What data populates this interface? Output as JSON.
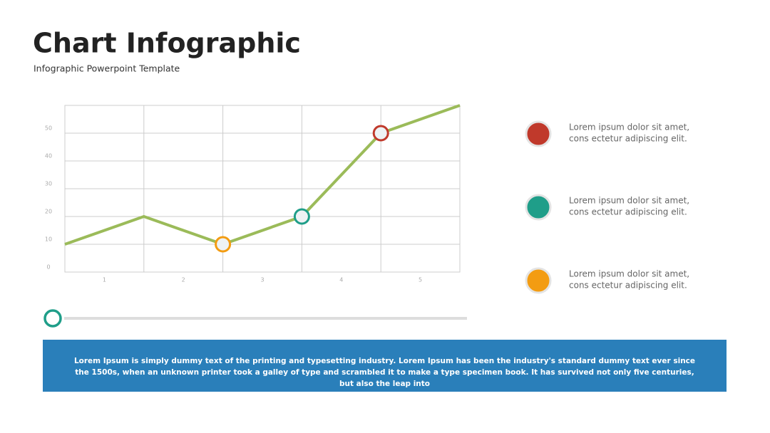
{
  "header": {
    "title": "Chart Infographic",
    "subtitle": "Infographic Powerpoint Template"
  },
  "chart_data": {
    "type": "line",
    "x": [
      0.5,
      1.5,
      2.5,
      3.5,
      4.5,
      5.5
    ],
    "xlim": [
      0.5,
      5.5
    ],
    "xticks": [
      1,
      2,
      3,
      4,
      5
    ],
    "ylim": [
      0,
      60
    ],
    "yticks": [
      0,
      10,
      20,
      30,
      40,
      50
    ],
    "grid": true,
    "series": [
      {
        "color": "#9bbb59",
        "values": [
          10,
          20,
          10,
          20,
          50,
          60
        ],
        "marker_colors": [
          null,
          null,
          "#f39c12",
          "#1f9e89",
          "#c0392b",
          null
        ]
      }
    ]
  },
  "legend": [
    {
      "color": "#c0392b",
      "lines": [
        "Lorem ipsum dolor sit amet,",
        "cons ectetur adipiscing elit."
      ]
    },
    {
      "color": "#1f9e89",
      "lines": [
        "Lorem ipsum dolor sit amet,",
        "cons ectetur adipiscing elit."
      ]
    },
    {
      "color": "#f39c12",
      "lines": [
        "Lorem ipsum dolor sit amet,",
        "cons ectetur adipiscing elit."
      ]
    }
  ],
  "footer": {
    "text": "Lorem Ipsum is simply dummy text of the printing and typesetting industry. Lorem Ipsum has been the industry's standard dummy text ever since the 1500s, when an unknown printer took a galley of type and scrambled it to make a type specimen book. It has survived not only five centuries, but also the leap into"
  }
}
